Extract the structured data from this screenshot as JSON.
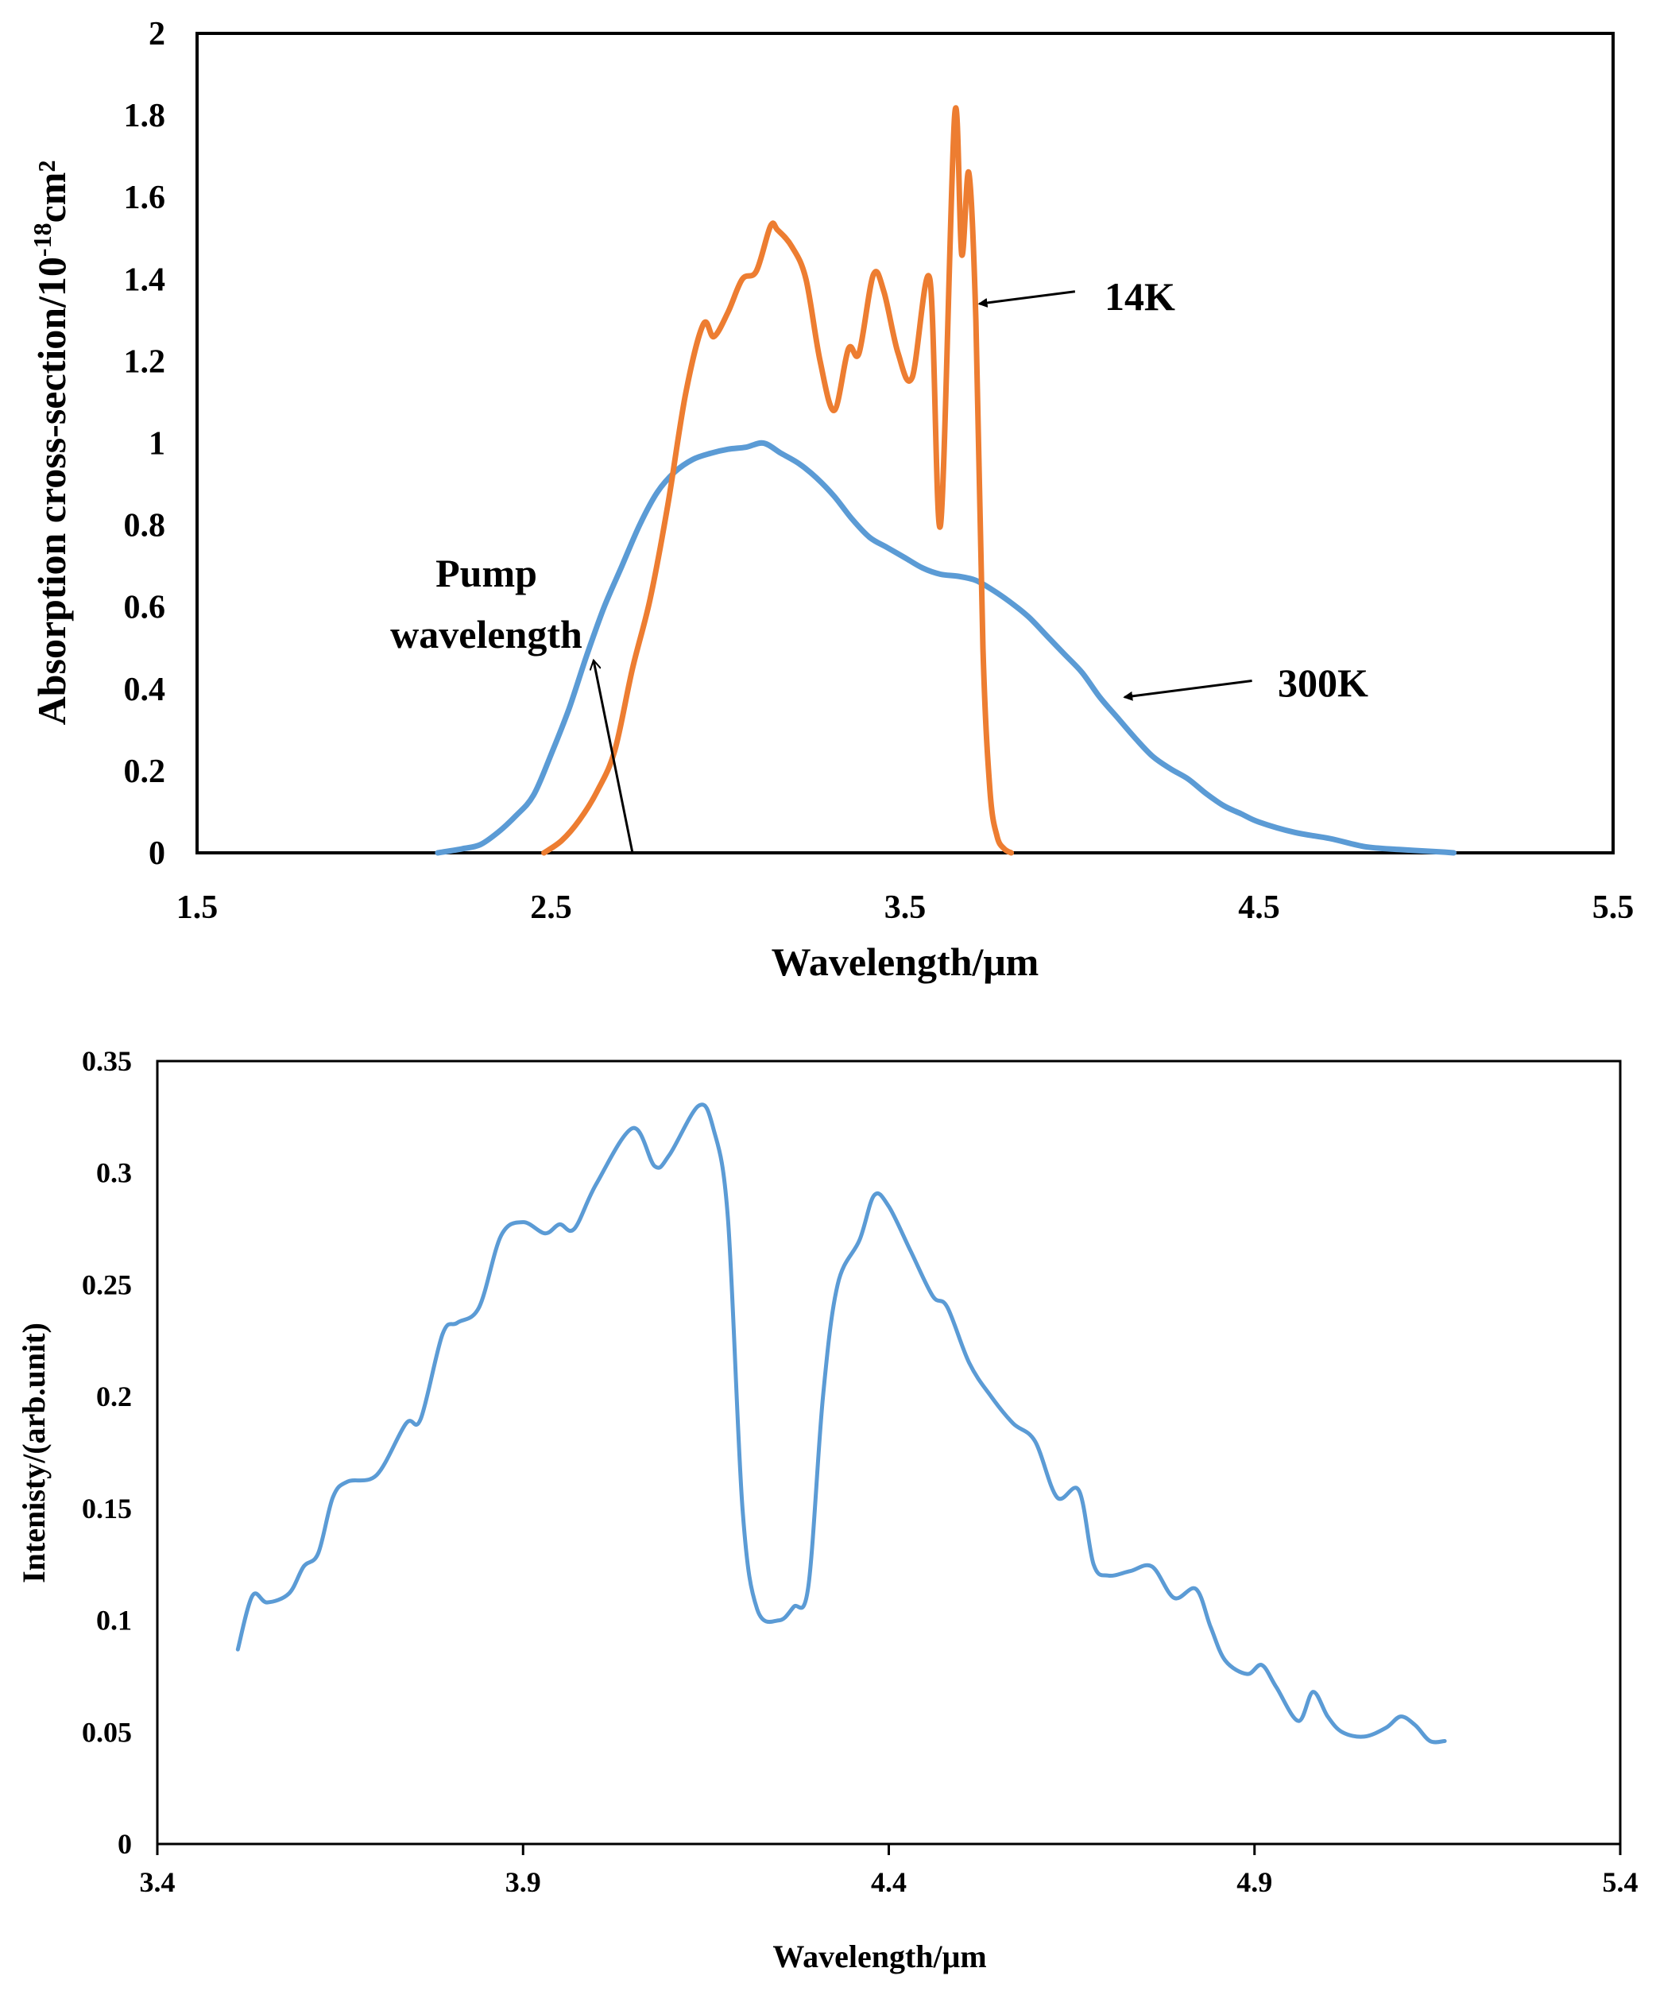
{
  "chart_data": [
    {
      "type": "line",
      "xlabel": "Wavelength/μm",
      "ylabel_main": "Absorption cross-section/10",
      "ylabel_sup": "-18",
      "ylabel_unit": "cm²",
      "xlim": [
        1.5,
        5.5
      ],
      "ylim": [
        0,
        2
      ],
      "xticks": [
        1.5,
        2.5,
        3.5,
        4.5,
        5.5
      ],
      "xtick_labels": [
        "1.5",
        "2.5",
        "3.5",
        "4.5",
        "5.5"
      ],
      "yticks": [
        0,
        0.2,
        0.4,
        0.6,
        0.8,
        1,
        1.2,
        1.4,
        1.6,
        1.8,
        2
      ],
      "ytick_labels": [
        "0",
        "0.2",
        "0.4",
        "0.6",
        "0.8",
        "1",
        "1.2",
        "1.4",
        "1.6",
        "1.8",
        "2"
      ],
      "grid": false,
      "series": [
        {
          "name": "300K",
          "color": "#5B9BD5",
          "x": [
            2.18,
            2.25,
            2.3,
            2.35,
            2.4,
            2.45,
            2.5,
            2.55,
            2.6,
            2.65,
            2.7,
            2.75,
            2.8,
            2.85,
            2.9,
            2.95,
            3.0,
            3.05,
            3.1,
            3.15,
            3.2,
            3.25,
            3.3,
            3.35,
            3.4,
            3.45,
            3.5,
            3.55,
            3.6,
            3.65,
            3.7,
            3.75,
            3.8,
            3.85,
            3.9,
            3.95,
            4.0,
            4.05,
            4.1,
            4.15,
            4.2,
            4.25,
            4.3,
            4.35,
            4.4,
            4.45,
            4.5,
            4.6,
            4.7,
            4.8,
            4.9,
            5.0,
            5.05
          ],
          "y": [
            0.0,
            0.01,
            0.02,
            0.05,
            0.09,
            0.14,
            0.24,
            0.35,
            0.48,
            0.6,
            0.7,
            0.8,
            0.88,
            0.93,
            0.96,
            0.975,
            0.985,
            0.99,
            1.0,
            0.975,
            0.95,
            0.915,
            0.87,
            0.815,
            0.77,
            0.745,
            0.72,
            0.695,
            0.68,
            0.675,
            0.665,
            0.64,
            0.61,
            0.575,
            0.53,
            0.485,
            0.44,
            0.38,
            0.33,
            0.28,
            0.235,
            0.205,
            0.18,
            0.145,
            0.115,
            0.095,
            0.075,
            0.05,
            0.035,
            0.015,
            0.008,
            0.003,
            0.0
          ]
        },
        {
          "name": "14K",
          "color": "#ED7D31",
          "x": [
            2.48,
            2.53,
            2.58,
            2.63,
            2.68,
            2.73,
            2.78,
            2.83,
            2.88,
            2.93,
            2.96,
            3.0,
            3.04,
            3.08,
            3.12,
            3.14,
            3.18,
            3.22,
            3.26,
            3.3,
            3.34,
            3.37,
            3.41,
            3.44,
            3.48,
            3.52,
            3.57,
            3.6,
            3.64,
            3.66,
            3.68,
            3.7,
            3.72,
            3.74,
            3.76,
            3.78,
            3.8
          ],
          "y": [
            0.0,
            0.03,
            0.08,
            0.15,
            0.25,
            0.45,
            0.62,
            0.85,
            1.12,
            1.29,
            1.26,
            1.32,
            1.4,
            1.42,
            1.53,
            1.52,
            1.48,
            1.4,
            1.2,
            1.08,
            1.23,
            1.22,
            1.41,
            1.37,
            1.22,
            1.16,
            1.4,
            0.8,
            1.8,
            1.46,
            1.66,
            1.3,
            0.5,
            0.15,
            0.04,
            0.01,
            0.0
          ]
        }
      ],
      "annotations": [
        {
          "label": "14K",
          "arrow_to": [
            3.71,
            1.34
          ],
          "arrow_from": [
            3.98,
            1.37
          ]
        },
        {
          "label": "300K",
          "arrow_to": [
            4.12,
            0.38
          ],
          "arrow_from": [
            4.48,
            0.42
          ]
        },
        {
          "label_lines": [
            "Pump",
            "wavelength"
          ],
          "arrow_to": [
            2.62,
            0.47
          ],
          "arrow_from": [
            2.73,
            0.0
          ]
        }
      ]
    },
    {
      "type": "line",
      "xlabel": "Wavelength/μm",
      "ylabel": "Intenisty/(arb.unit)",
      "xlim": [
        3.4,
        5.4
      ],
      "ylim": [
        0,
        0.35
      ],
      "xticks": [
        3.4,
        3.9,
        4.4,
        4.9,
        5.4
      ],
      "xtick_labels": [
        "3.4",
        "3.9",
        "4.4",
        "4.9",
        "5.4"
      ],
      "yticks": [
        0,
        0.05,
        0.1,
        0.15,
        0.2,
        0.25,
        0.3,
        0.35
      ],
      "ytick_labels": [
        "0",
        "0.05",
        "0.1",
        "0.15",
        "0.2",
        "0.25",
        "0.3",
        "0.35"
      ],
      "grid": false,
      "series": [
        {
          "name": "Intensity",
          "color": "#5B9BD5",
          "x": [
            3.51,
            3.53,
            3.55,
            3.58,
            3.6,
            3.62,
            3.64,
            3.66,
            3.7,
            3.74,
            3.76,
            3.79,
            3.81,
            3.84,
            3.87,
            3.9,
            3.93,
            3.95,
            3.97,
            4.0,
            4.05,
            4.08,
            4.1,
            4.14,
            4.16,
            4.18,
            4.2,
            4.22,
            4.25,
            4.27,
            4.29,
            4.31,
            4.33,
            4.36,
            4.38,
            4.4,
            4.43,
            4.46,
            4.48,
            4.51,
            4.54,
            4.57,
            4.6,
            4.63,
            4.66,
            4.68,
            4.7,
            4.73,
            4.76,
            4.79,
            4.82,
            4.84,
            4.86,
            4.89,
            4.91,
            4.93,
            4.96,
            4.98,
            5.0,
            5.02,
            5.05,
            5.08,
            5.1,
            5.12,
            5.14,
            5.16
          ],
          "y": [
            0.087,
            0.111,
            0.108,
            0.112,
            0.124,
            0.13,
            0.155,
            0.162,
            0.165,
            0.188,
            0.19,
            0.228,
            0.233,
            0.24,
            0.272,
            0.278,
            0.273,
            0.277,
            0.275,
            0.295,
            0.32,
            0.303,
            0.308,
            0.33,
            0.32,
            0.28,
            0.15,
            0.105,
            0.1,
            0.106,
            0.115,
            0.2,
            0.25,
            0.27,
            0.29,
            0.285,
            0.265,
            0.245,
            0.24,
            0.215,
            0.2,
            0.188,
            0.18,
            0.155,
            0.158,
            0.125,
            0.12,
            0.122,
            0.124,
            0.11,
            0.114,
            0.097,
            0.082,
            0.076,
            0.08,
            0.07,
            0.055,
            0.068,
            0.057,
            0.05,
            0.048,
            0.052,
            0.057,
            0.053,
            0.046,
            0.046
          ]
        }
      ]
    }
  ]
}
